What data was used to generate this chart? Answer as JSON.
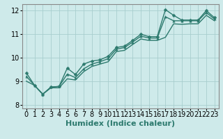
{
  "title": "",
  "xlabel": "Humidex (Indice chaleur)",
  "ylabel": "",
  "bg_color": "#ceeaea",
  "line_color": "#2d7a6e",
  "grid_color": "#a8cece",
  "xlim": [
    -0.5,
    23.5
  ],
  "ylim": [
    7.85,
    12.25
  ],
  "xticks": [
    0,
    1,
    2,
    3,
    4,
    5,
    6,
    7,
    8,
    9,
    10,
    11,
    12,
    13,
    14,
    15,
    16,
    17,
    18,
    19,
    20,
    21,
    22,
    23
  ],
  "yticks": [
    8,
    9,
    10,
    11,
    12
  ],
  "series1_x": [
    0,
    1,
    2,
    3,
    4,
    5,
    6,
    7,
    8,
    9,
    10,
    11,
    12,
    13,
    14,
    15,
    16,
    17,
    18,
    19,
    20,
    21,
    22,
    23
  ],
  "series1_y": [
    9.35,
    8.82,
    8.45,
    8.75,
    8.78,
    9.55,
    9.28,
    9.72,
    9.85,
    9.9,
    10.05,
    10.42,
    10.48,
    10.72,
    10.98,
    10.88,
    10.88,
    12.02,
    11.78,
    11.58,
    11.58,
    11.58,
    11.98,
    11.68
  ],
  "series2_x": [
    0,
    1,
    2,
    3,
    4,
    5,
    6,
    7,
    8,
    9,
    10,
    11,
    12,
    13,
    14,
    15,
    16,
    17,
    18,
    19,
    20,
    21,
    22,
    23
  ],
  "series2_y": [
    9.2,
    8.82,
    8.45,
    8.75,
    8.78,
    9.3,
    9.15,
    9.52,
    9.72,
    9.82,
    9.95,
    10.35,
    10.42,
    10.65,
    10.9,
    10.82,
    10.82,
    11.72,
    11.55,
    11.55,
    11.55,
    11.55,
    11.9,
    11.62
  ],
  "series3_x": [
    0,
    1,
    2,
    3,
    4,
    5,
    6,
    7,
    8,
    9,
    10,
    11,
    12,
    13,
    14,
    15,
    16,
    17,
    18,
    19,
    20,
    21,
    22,
    23
  ],
  "series3_y": [
    9.0,
    8.82,
    8.45,
    8.72,
    8.72,
    9.1,
    9.05,
    9.4,
    9.62,
    9.72,
    9.82,
    10.25,
    10.3,
    10.55,
    10.78,
    10.72,
    10.72,
    10.85,
    11.42,
    11.4,
    11.42,
    11.42,
    11.78,
    11.55
  ],
  "font_size_xlabel": 8,
  "font_size_ticks": 7,
  "marker_size": 2.5,
  "line_width": 1.0
}
